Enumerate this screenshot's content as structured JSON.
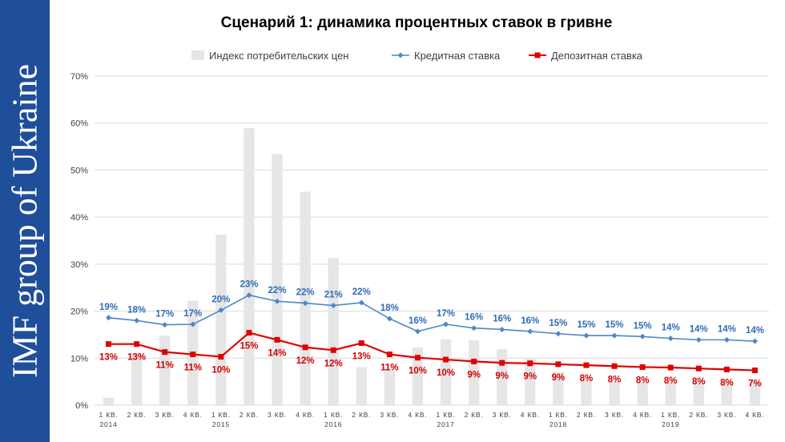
{
  "sidebar": {
    "text": "IMF group of Ukraine"
  },
  "chart_data": {
    "type": "bar+line",
    "title": "Сценарий 1: динамика процентных ставок в гривне",
    "ylim": [
      0,
      70
    ],
    "yticks": [
      "0%",
      "10%",
      "20%",
      "30%",
      "40%",
      "50%",
      "60%",
      "70%"
    ],
    "legend_position": "top",
    "categories": [
      {
        "q": "1 КВ.",
        "year": "2014"
      },
      {
        "q": "2 КВ.",
        "year": ""
      },
      {
        "q": "3 КВ.",
        "year": ""
      },
      {
        "q": "4 КВ.",
        "year": ""
      },
      {
        "q": "1 КВ.",
        "year": "2015"
      },
      {
        "q": "2 КВ.",
        "year": ""
      },
      {
        "q": "3 КВ.",
        "year": ""
      },
      {
        "q": "4 КВ.",
        "year": ""
      },
      {
        "q": "1 КВ.",
        "year": "2016"
      },
      {
        "q": "2 КВ.",
        "year": ""
      },
      {
        "q": "3 КВ.",
        "year": ""
      },
      {
        "q": "4 КВ.",
        "year": ""
      },
      {
        "q": "1 КВ.",
        "year": "2017"
      },
      {
        "q": "2 КВ.",
        "year": ""
      },
      {
        "q": "3 КВ.",
        "year": ""
      },
      {
        "q": "4 КВ.",
        "year": ""
      },
      {
        "q": "1 КВ.",
        "year": "2018"
      },
      {
        "q": "2 КВ.",
        "year": ""
      },
      {
        "q": "3 КВ.",
        "year": ""
      },
      {
        "q": "4 КВ.",
        "year": ""
      },
      {
        "q": "1 КВ.",
        "year": "2019"
      },
      {
        "q": "2 КВ.",
        "year": ""
      },
      {
        "q": "3 КВ.",
        "year": ""
      },
      {
        "q": "4 КВ.",
        "year": ""
      }
    ],
    "series": [
      {
        "name": "Индекс потребительских цен",
        "kind": "bar",
        "color": "#e6e6e6",
        "values": [
          1.6,
          11.0,
          14.8,
          22.2,
          36.3,
          59.0,
          53.4,
          45.4,
          31.3,
          8.1,
          8.0,
          12.3,
          14.0,
          13.8,
          11.9,
          10.1,
          7.0,
          5.5,
          5.0,
          5.0,
          5.0,
          5.0,
          5.0,
          5.0
        ]
      },
      {
        "name": "Кредитная ставка",
        "kind": "line",
        "color": "#4f86c6",
        "marker": "diamond",
        "values": [
          18.6,
          18.0,
          17.1,
          17.2,
          20.2,
          23.4,
          22.1,
          21.7,
          21.2,
          21.8,
          18.4,
          15.7,
          17.2,
          16.4,
          16.1,
          15.7,
          15.2,
          14.8,
          14.8,
          14.6,
          14.2,
          13.9,
          13.9,
          13.6
        ],
        "labels": [
          "19%",
          "18%",
          "17%",
          "17%",
          "20%",
          "23%",
          "22%",
          "22%",
          "21%",
          "22%",
          "18%",
          "16%",
          "17%",
          "16%",
          "16%",
          "16%",
          "15%",
          "15%",
          "15%",
          "15%",
          "14%",
          "14%",
          "14%",
          "14%"
        ]
      },
      {
        "name": "Депозитная ставка",
        "kind": "line",
        "color": "#e00000",
        "marker": "square",
        "values": [
          13.0,
          13.0,
          11.3,
          10.8,
          10.3,
          15.4,
          13.9,
          12.3,
          11.7,
          13.2,
          10.8,
          10.1,
          9.7,
          9.3,
          9.0,
          8.9,
          8.7,
          8.5,
          8.3,
          8.1,
          8.0,
          7.8,
          7.6,
          7.4
        ],
        "labels": [
          "13%",
          "13%",
          "11%",
          "11%",
          "10%",
          "15%",
          "14%",
          "12%",
          "12%",
          "13%",
          "11%",
          "10%",
          "10%",
          "9%",
          "9%",
          "9%",
          "9%",
          "8%",
          "8%",
          "8%",
          "8%",
          "8%",
          "8%",
          "7%"
        ]
      }
    ]
  }
}
